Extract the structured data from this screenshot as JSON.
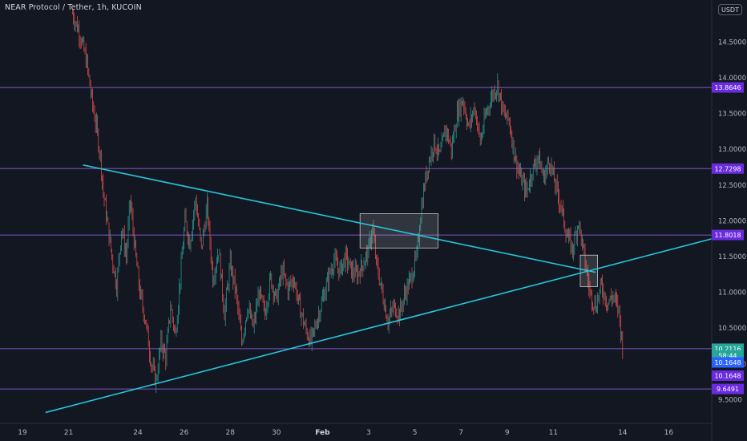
{
  "header": {
    "title": "NEAR Protocol / Tether, 1h, KUCOIN",
    "unit": "USDT"
  },
  "colors": {
    "background": "#131722",
    "up": "#26a69a",
    "down": "#ef5350",
    "level": "#7e57c2",
    "trendline": "#26c6da",
    "axis_text": "#b2b5be",
    "countdown": "#26a69a",
    "current_badge": "#2962ff"
  },
  "chart_data": {
    "type": "candlestick",
    "symbol": "NEAR Protocol / Tether",
    "interval": "1h",
    "exchange": "KUCOIN",
    "x_tick_labels": [
      "19",
      "21",
      "24",
      "26",
      "28",
      "30",
      "Feb",
      "3",
      "5",
      "7",
      "9",
      "11",
      "14",
      "16"
    ],
    "y_tick_labels": [
      "9.5000",
      "10.0000",
      "10.5000",
      "11.0000",
      "11.5000",
      "12.0000",
      "12.5000",
      "13.0000",
      "13.5000",
      "14.0000",
      "14.5000"
    ],
    "ylim": [
      9.3,
      15.0
    ],
    "horizontal_levels": [
      13.8646,
      12.7298,
      11.8018,
      10.2116,
      9.6491
    ],
    "price_badges": [
      {
        "label": "13.8646",
        "value": 13.8646,
        "kind": "level"
      },
      {
        "label": "12.7298",
        "value": 12.7298,
        "kind": "level"
      },
      {
        "label": "11.8018",
        "value": 11.8018,
        "kind": "level"
      },
      {
        "label": "10.2116",
        "value": 10.2116,
        "kind": "last_price"
      },
      {
        "label": "58:44",
        "value": 10.115,
        "kind": "countdown"
      },
      {
        "label": "10.1648",
        "value": 10.02,
        "kind": "current"
      },
      {
        "label": "10.1648",
        "value": 9.835,
        "kind": "level"
      },
      {
        "label": "9.6491",
        "value": 9.6491,
        "kind": "level"
      }
    ],
    "trendlines": [
      {
        "name": "descending",
        "from": {
          "x": "Jan 21 15:00",
          "y": 12.78
        },
        "to": {
          "x": "Feb 12 20:00",
          "y": 11.28
        }
      },
      {
        "name": "ascending",
        "from": {
          "x": "Jan 20 00:00",
          "y": 9.32
        },
        "to": {
          "x": "Feb 18 00:00",
          "y": 11.76
        }
      }
    ],
    "boxes": [
      {
        "from_x": "Feb 2 15:00",
        "to_x": "Feb 6 00:00",
        "y_low": 11.62,
        "y_high": 12.1
      },
      {
        "from_x": "Feb 12 04:00",
        "to_x": "Feb 12 22:00",
        "y_low": 11.08,
        "y_high": 11.52
      }
    ],
    "price_path": [
      {
        "x": "Jan 21 04:00",
        "y": 14.9
      },
      {
        "x": "Jan 21 12:00",
        "y": 14.6
      },
      {
        "x": "Jan 21 19:00",
        "y": 14.2
      },
      {
        "x": "Jan 22 00:00",
        "y": 13.7
      },
      {
        "x": "Jan 22 05:00",
        "y": 13.3
      },
      {
        "x": "Jan 22 09:00",
        "y": 12.9
      },
      {
        "x": "Jan 22 12:00",
        "y": 12.4
      },
      {
        "x": "Jan 22 16:00",
        "y": 12.0
      },
      {
        "x": "Jan 22 21:00",
        "y": 11.5
      },
      {
        "x": "Jan 23 02:00",
        "y": 11.1
      },
      {
        "x": "Jan 23 07:00",
        "y": 11.9
      },
      {
        "x": "Jan 23 12:00",
        "y": 11.5
      },
      {
        "x": "Jan 23 16:00",
        "y": 12.3
      },
      {
        "x": "Jan 23 21:00",
        "y": 11.6
      },
      {
        "x": "Jan 24 02:00",
        "y": 11.0
      },
      {
        "x": "Jan 24 08:00",
        "y": 10.6
      },
      {
        "x": "Jan 24 14:00",
        "y": 10.0
      },
      {
        "x": "Jan 24 19:00",
        "y": 9.75
      },
      {
        "x": "Jan 25 00:00",
        "y": 10.3
      },
      {
        "x": "Jan 25 05:00",
        "y": 10.1
      },
      {
        "x": "Jan 25 10:00",
        "y": 10.8
      },
      {
        "x": "Jan 25 15:00",
        "y": 10.4
      },
      {
        "x": "Jan 25 20:00",
        "y": 11.2
      },
      {
        "x": "Jan 26 01:00",
        "y": 12.0
      },
      {
        "x": "Jan 26 06:00",
        "y": 11.7
      },
      {
        "x": "Jan 26 12:00",
        "y": 12.3
      },
      {
        "x": "Jan 26 18:00",
        "y": 11.6
      },
      {
        "x": "Jan 27 00:00",
        "y": 12.2
      },
      {
        "x": "Jan 27 06:00",
        "y": 11.2
      },
      {
        "x": "Jan 27 12:00",
        "y": 11.6
      },
      {
        "x": "Jan 27 18:00",
        "y": 10.7
      },
      {
        "x": "Jan 28 00:00",
        "y": 11.4
      },
      {
        "x": "Jan 28 06:00",
        "y": 11.0
      },
      {
        "x": "Jan 28 12:00",
        "y": 10.3
      },
      {
        "x": "Jan 28 18:00",
        "y": 10.8
      },
      {
        "x": "Jan 29 00:00",
        "y": 10.5
      },
      {
        "x": "Jan 29 06:00",
        "y": 11.0
      },
      {
        "x": "Jan 29 12:00",
        "y": 10.7
      },
      {
        "x": "Jan 29 18:00",
        "y": 11.2
      },
      {
        "x": "Jan 30 00:00",
        "y": 10.9
      },
      {
        "x": "Jan 30 06:00",
        "y": 11.3
      },
      {
        "x": "Jan 30 12:00",
        "y": 11.05
      },
      {
        "x": "Jan 30 18:00",
        "y": 11.2
      },
      {
        "x": "Jan 31 00:00",
        "y": 10.8
      },
      {
        "x": "Jan 31 06:00",
        "y": 10.5
      },
      {
        "x": "Jan 31 12:00",
        "y": 10.3
      },
      {
        "x": "Jan 31 18:00",
        "y": 10.6
      },
      {
        "x": "Feb 1 00:00",
        "y": 10.9
      },
      {
        "x": "Feb 1 06:00",
        "y": 11.2
      },
      {
        "x": "Feb 1 12:00",
        "y": 11.45
      },
      {
        "x": "Feb 1 18:00",
        "y": 11.3
      },
      {
        "x": "Feb 2 00:00",
        "y": 11.5
      },
      {
        "x": "Feb 2 06:00",
        "y": 11.3
      },
      {
        "x": "Feb 2 12:00",
        "y": 11.25
      },
      {
        "x": "Feb 2 18:00",
        "y": 11.4
      },
      {
        "x": "Feb 3 00:00",
        "y": 11.6
      },
      {
        "x": "Feb 3 04:00",
        "y": 11.9
      },
      {
        "x": "Feb 3 08:00",
        "y": 11.4
      },
      {
        "x": "Feb 3 14:00",
        "y": 11.0
      },
      {
        "x": "Feb 3 20:00",
        "y": 10.6
      },
      {
        "x": "Feb 4 02:00",
        "y": 10.8
      },
      {
        "x": "Feb 4 08:00",
        "y": 10.7
      },
      {
        "x": "Feb 4 14:00",
        "y": 11.0
      },
      {
        "x": "Feb 4 20:00",
        "y": 11.2
      },
      {
        "x": "Feb 5 02:00",
        "y": 11.5
      },
      {
        "x": "Feb 5 06:00",
        "y": 12.1
      },
      {
        "x": "Feb 5 10:00",
        "y": 12.5
      },
      {
        "x": "Feb 5 14:00",
        "y": 12.8
      },
      {
        "x": "Feb 5 20:00",
        "y": 13.1
      },
      {
        "x": "Feb 6 02:00",
        "y": 12.9
      },
      {
        "x": "Feb 6 08:00",
        "y": 13.3
      },
      {
        "x": "Feb 6 14:00",
        "y": 13.0
      },
      {
        "x": "Feb 6 20:00",
        "y": 13.5
      },
      {
        "x": "Feb 7 02:00",
        "y": 13.7
      },
      {
        "x": "Feb 7 08:00",
        "y": 13.3
      },
      {
        "x": "Feb 7 14:00",
        "y": 13.6
      },
      {
        "x": "Feb 7 20:00",
        "y": 13.1
      },
      {
        "x": "Feb 8 02:00",
        "y": 13.5
      },
      {
        "x": "Feb 8 08:00",
        "y": 13.75
      },
      {
        "x": "Feb 8 14:00",
        "y": 13.9
      },
      {
        "x": "Feb 8 20:00",
        "y": 13.5
      },
      {
        "x": "Feb 9 02:00",
        "y": 13.4
      },
      {
        "x": "Feb 9 08:00",
        "y": 12.9
      },
      {
        "x": "Feb 9 14:00",
        "y": 12.6
      },
      {
        "x": "Feb 9 20:00",
        "y": 12.4
      },
      {
        "x": "Feb 10 02:00",
        "y": 12.7
      },
      {
        "x": "Feb 10 08:00",
        "y": 12.9
      },
      {
        "x": "Feb 10 14:00",
        "y": 12.6
      },
      {
        "x": "Feb 10 20:00",
        "y": 12.85
      },
      {
        "x": "Feb 11 02:00",
        "y": 12.5
      },
      {
        "x": "Feb 11 08:00",
        "y": 12.2
      },
      {
        "x": "Feb 11 14:00",
        "y": 11.8
      },
      {
        "x": "Feb 11 20:00",
        "y": 11.6
      },
      {
        "x": "Feb 12 02:00",
        "y": 12.0
      },
      {
        "x": "Feb 12 08:00",
        "y": 11.5
      },
      {
        "x": "Feb 12 14:00",
        "y": 11.0
      },
      {
        "x": "Feb 12 20:00",
        "y": 10.8
      },
      {
        "x": "Feb 13 02:00",
        "y": 11.1
      },
      {
        "x": "Feb 13 08:00",
        "y": 10.85
      },
      {
        "x": "Feb 13 14:00",
        "y": 10.95
      },
      {
        "x": "Feb 13 20:00",
        "y": 10.75
      },
      {
        "x": "Feb 14 00:00",
        "y": 10.21
      }
    ]
  }
}
